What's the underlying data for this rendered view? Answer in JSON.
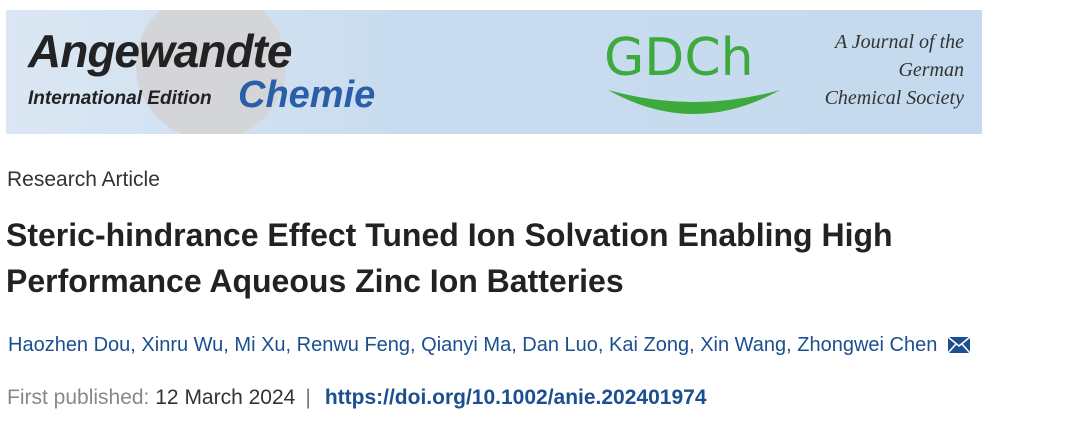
{
  "banner": {
    "journal_name": "Angewandte",
    "edition": "International Edition",
    "journal_subname": "Chemie",
    "society_logo": "GDCh",
    "society_lines": [
      "A Journal of the",
      "German",
      "Chemical Society"
    ]
  },
  "article": {
    "type": "Research Article",
    "title_lines": [
      "Steric-hindrance Effect Tuned Ion Solvation Enabling High",
      "Performance Aqueous Zinc Ion Batteries"
    ],
    "authors": "Haozhen Dou, Xinru Wu, Mi Xu, Renwu Feng, Qianyi Ma, Dan Luo, Kai Zong, Xin Wang, Zhongwei Chen",
    "published_label": "First published:",
    "published_date": "12 March 2024",
    "separator": "|",
    "doi": "https://doi.org/10.1002/anie.202401974"
  }
}
